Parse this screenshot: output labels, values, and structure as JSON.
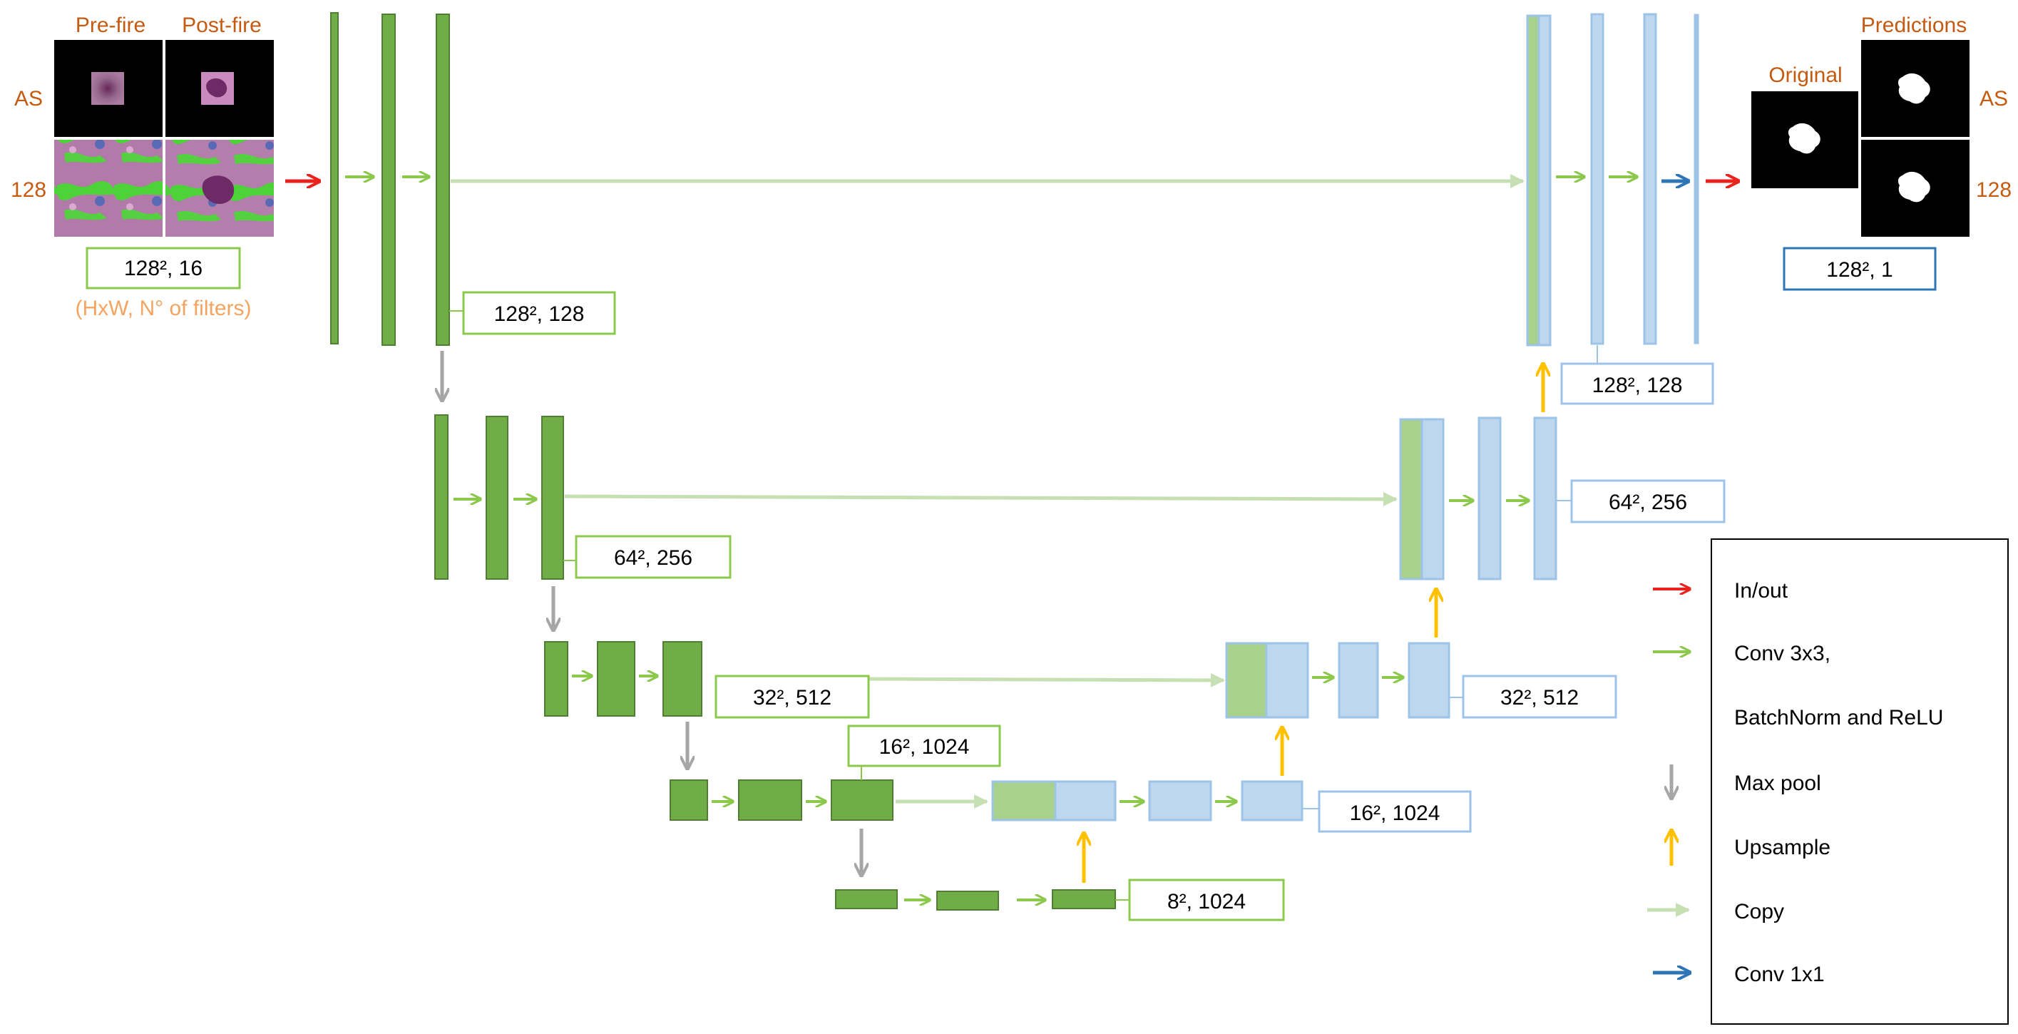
{
  "input": {
    "pre_fire": "Pre-fire",
    "post_fire": "Post-fire",
    "row_as": "AS",
    "row_128": "128",
    "size_label": "128², 16",
    "note": "(HxW, N° of filters)"
  },
  "output": {
    "predictions": "Predictions",
    "original": "Original",
    "row_as": "AS",
    "row_128": "128",
    "size_label": "128², 1"
  },
  "encoder_labels": [
    "128², 128",
    "64², 256",
    "32², 512",
    "16², 1024",
    "8², 1024"
  ],
  "decoder_labels": [
    "128², 128",
    "64², 256",
    "32², 512",
    "16², 1024"
  ],
  "legend": {
    "items": [
      {
        "label": "In/out",
        "color": "#e8231d",
        "kind": "arrow-right"
      },
      {
        "label": "Conv 3x3,",
        "color": "#8cc84b",
        "kind": "arrow-right"
      },
      {
        "label": "BatchNorm and ReLU",
        "color": "",
        "kind": "none"
      },
      {
        "label": "Max pool",
        "color": "#a6a6a6",
        "kind": "arrow-down"
      },
      {
        "label": "Upsample",
        "color": "#ffc000",
        "kind": "arrow-up"
      },
      {
        "label": "Copy",
        "color": "#c6e0b4",
        "kind": "arrow-right"
      },
      {
        "label": "Conv 1x1",
        "color": "#2e75b6",
        "kind": "arrow-right"
      }
    ]
  },
  "colors": {
    "encoder_fill": "#70ad47",
    "encoder_stroke": "#507e32",
    "decoder_fill": "#bdd7ee",
    "decoder_stroke": "#9dc3e6",
    "copy_fill": "#a9d18e",
    "conv": "#8cc84b",
    "copy": "#c6e0b4",
    "maxpool": "#a6a6a6",
    "upsample": "#ffc000",
    "inout": "#e8231d",
    "conv1x1": "#2e75b6",
    "label_orange": "#c55a11",
    "label_box_green": "#8cc84b",
    "label_box_blue": "#9dc3e6",
    "output_box_blue": "#2e75b6"
  }
}
